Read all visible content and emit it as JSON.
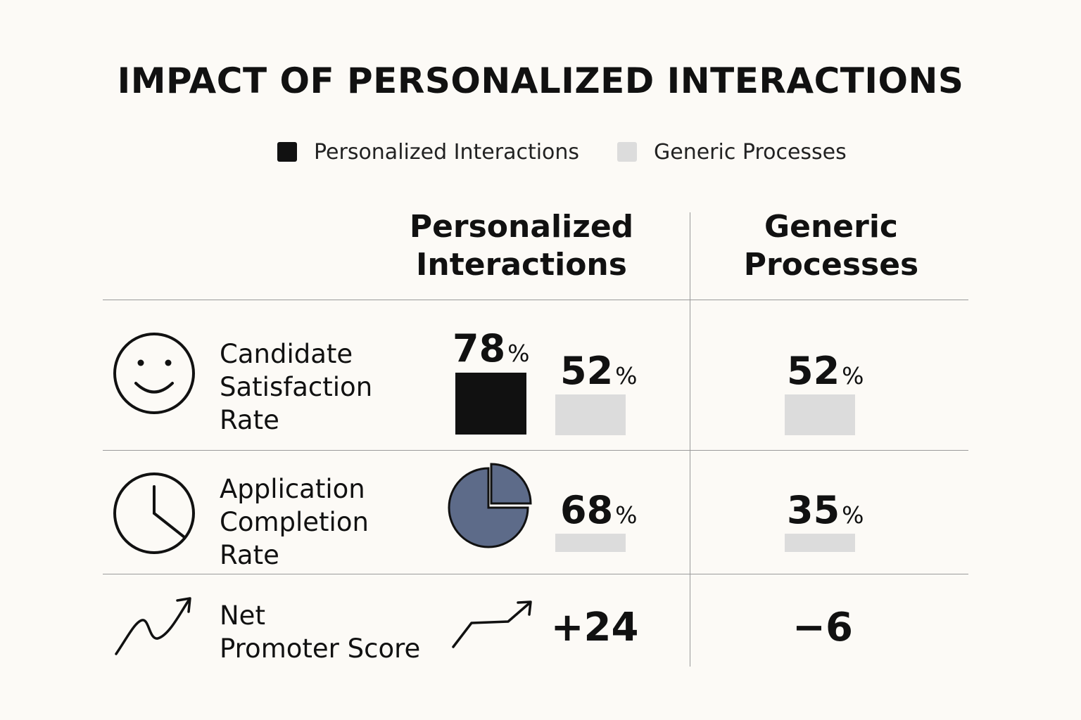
{
  "title": "IMPACT OF PERSONALIZED INTERACTIONS",
  "legend": [
    {
      "label": "Personalized Interactions",
      "color": "#111111"
    },
    {
      "label": "Generic Processes",
      "color": "#dcdcdc"
    }
  ],
  "columns": {
    "personalized": {
      "line1": "Personalized",
      "line2": "Interactions"
    },
    "generic": {
      "line1": "Generic",
      "line2": "Processes"
    }
  },
  "rows": [
    {
      "label_lines": [
        "Candidate",
        "Satisfaction",
        "Rate"
      ],
      "icon": "smiley-face-icon",
      "personalized_value": "78",
      "personalized_unit": "%",
      "comparison_value": "52",
      "comparison_unit": "%",
      "generic_value": "52",
      "generic_unit": "%"
    },
    {
      "label_lines": [
        "Application",
        "Completion",
        "Rate"
      ],
      "icon": "clock-icon",
      "personalized_value": "68",
      "personalized_unit": "%",
      "comparison_value": "68",
      "comparison_unit": "%",
      "generic_value": "35",
      "generic_unit": "%"
    },
    {
      "label_lines": [
        "Net",
        "Promoter Score"
      ],
      "icon": "trend-up-icon",
      "personalized_value": "+24",
      "generic_value": "−6"
    }
  ],
  "chart_data": {
    "type": "table",
    "title": "IMPACT OF PERSONALIZED INTERACTIONS",
    "series": [
      {
        "name": "Personalized Interactions",
        "values": [
          78,
          68,
          24
        ]
      },
      {
        "name": "Generic Processes",
        "values": [
          52,
          35,
          -6
        ]
      }
    ],
    "categories": [
      "Candidate Satisfaction Rate",
      "Application Completion Rate",
      "Net Promoter Score"
    ],
    "units": [
      "%",
      "%",
      ""
    ],
    "colors": {
      "personalized": "#111111",
      "generic": "#dcdcdc",
      "pie": "#5d6b89"
    }
  }
}
